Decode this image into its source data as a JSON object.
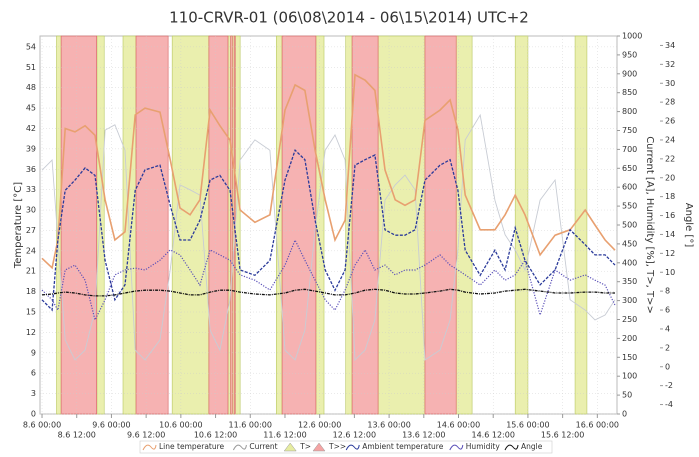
{
  "chart_data": {
    "type": "line",
    "title": "110-CRVR-01 (06\\08\\2014 - 06\\15\\2014) UTC+2",
    "ylabel": "Temperature [°C]",
    "y2label": "Current [A], Humidity [%], T>, T>>",
    "y3label": "Angle [°]",
    "grid": true,
    "legend": "bottom",
    "xlim": [
      -0.7,
      198.8
    ],
    "xticks": [
      {
        "value": 0,
        "label": "8.6 00:00"
      },
      {
        "value": 12,
        "label": "8.6 12:00"
      },
      {
        "value": 24,
        "label": "9.6 00:00"
      },
      {
        "value": 36,
        "label": "9.6 12:00"
      },
      {
        "value": 48,
        "label": "10.6 00:00"
      },
      {
        "value": 60,
        "label": "10.6 12:00"
      },
      {
        "value": 72,
        "label": "11.6 00:00"
      },
      {
        "value": 84,
        "label": "11.6 12:00"
      },
      {
        "value": 96,
        "label": "12.6 00:00"
      },
      {
        "value": 108,
        "label": "12.6 12:00"
      },
      {
        "value": 120,
        "label": "13.6 00:00"
      },
      {
        "value": 132,
        "label": "13.6 12:00"
      },
      {
        "value": 144,
        "label": "14.6 00:00"
      },
      {
        "value": 156,
        "label": "14.6 12:00"
      },
      {
        "value": 168,
        "label": "15.6 00:00"
      },
      {
        "value": 180,
        "label": "15.6 12:00"
      },
      {
        "value": 192,
        "label": "16.6 00:00"
      }
    ],
    "ylim": [
      0,
      55.6
    ],
    "yticks": [
      0,
      3,
      6,
      9,
      12,
      15,
      18,
      21,
      24,
      27,
      30,
      33,
      36,
      39,
      42,
      45,
      48,
      51,
      54
    ],
    "y2lim": [
      0,
      1000
    ],
    "y2ticks": [
      0,
      50,
      100,
      150,
      200,
      250,
      300,
      350,
      400,
      450,
      500,
      550,
      600,
      650,
      700,
      750,
      800,
      850,
      900,
      950,
      1000
    ],
    "y3lim": [
      -5,
      35
    ],
    "y3ticks": [
      -4,
      -2,
      0,
      2,
      4,
      6,
      8,
      10,
      12,
      14,
      16,
      18,
      20,
      22,
      24,
      26,
      28,
      30,
      32,
      34
    ],
    "x": [
      0,
      3.5,
      5.5,
      8,
      11.4,
      14.9,
      18.3,
      21.8,
      25.2,
      28.7,
      32.2,
      35.6,
      40.8,
      44.3,
      47.7,
      51.2,
      54.6,
      58.1,
      61.5,
      65,
      68.5,
      73.6,
      78.8,
      84,
      87.5,
      90.9,
      94.4,
      97.9,
      101.3,
      104.8,
      108.2,
      111.7,
      115.1,
      118.6,
      122.1,
      125.5,
      129,
      132.4,
      137.6,
      141.1,
      143.8,
      146.3,
      151.5,
      156.6,
      160.1,
      163.6,
      167,
      172.2,
      177.4,
      182.6,
      187.8,
      191.2,
      194.7,
      198.1
    ],
    "series": [
      {
        "name": "Line temperature",
        "color": "#e8a070",
        "axis": "y",
        "values": [
          22.9,
          21.5,
          25.6,
          42,
          41.5,
          42.4,
          41,
          31.5,
          25.6,
          26.8,
          44,
          45,
          44.4,
          37.4,
          30.3,
          29.3,
          31.5,
          44.7,
          42.4,
          40.3,
          30,
          28.2,
          29.3,
          44.7,
          48.4,
          47.6,
          38.8,
          31.5,
          25.6,
          28.5,
          49.9,
          49.1,
          47.6,
          35.9,
          31.5,
          30.7,
          31.5,
          43.2,
          44.7,
          46.2,
          41.8,
          32.2,
          27.1,
          27.1,
          29.3,
          32.2,
          29.3,
          23.4,
          26.3,
          27.1,
          30,
          27.8,
          25.6,
          24.1
        ]
      },
      {
        "name": "Current",
        "color": "#c8ccd4",
        "axis": "y2",
        "values": [
          645,
          672,
          460,
          196,
          143,
          169,
          275,
          751,
          765,
          698,
          169,
          143,
          196,
          381,
          606,
          593,
          579,
          222,
          169,
          302,
          672,
          725,
          698,
          169,
          143,
          222,
          487,
          698,
          738,
          672,
          143,
          169,
          249,
          566,
          606,
          632,
          593,
          143,
          169,
          249,
          434,
          725,
          791,
          566,
          474,
          434,
          381,
          566,
          619,
          302,
          275,
          249,
          262,
          302
        ]
      },
      {
        "name": "T>",
        "color": "#e6eca0",
        "axis": "y2",
        "level": 1000,
        "intervals": [
          [
            5,
            6.6
          ],
          [
            19,
            21.5
          ],
          [
            28,
            32.5
          ],
          [
            45,
            57.7
          ],
          [
            64.3,
            68.5
          ],
          [
            81,
            83
          ],
          [
            94.7,
            97.5
          ],
          [
            105,
            107.2
          ],
          [
            116.2,
            132.4
          ],
          [
            143.2,
            148.7
          ],
          [
            163.6,
            168
          ],
          [
            184.3,
            188.4
          ]
        ]
      },
      {
        "name": "T>>",
        "color": "#f4a4a4",
        "axis": "y2",
        "level": 1000,
        "intervals": [
          [
            6.6,
            18.9
          ],
          [
            32.5,
            43.6
          ],
          [
            57.7,
            64.3
          ],
          [
            65.2,
            65.8
          ],
          [
            66.4,
            66.8
          ],
          [
            83,
            94.7
          ],
          [
            107.2,
            116.2
          ],
          [
            132.4,
            143.2
          ]
        ]
      },
      {
        "name": "Ambient temperature",
        "color": "#2a3a9a",
        "axis": "y",
        "values": [
          16.8,
          15.3,
          25.6,
          32.9,
          34.4,
          36.2,
          35.1,
          22.6,
          16.8,
          19,
          32.9,
          35.9,
          36.6,
          30.7,
          25.6,
          25.6,
          28.5,
          34.4,
          35.1,
          32.9,
          21.2,
          20.4,
          22.6,
          34.4,
          38.8,
          37.4,
          28.5,
          21.2,
          18.2,
          21.2,
          36.6,
          37.4,
          38.1,
          27.1,
          26.3,
          26.3,
          27.1,
          34.4,
          36.6,
          37.4,
          32.9,
          24.1,
          20.4,
          24.1,
          21.2,
          27.4,
          22.6,
          19,
          21.2,
          27.1,
          24.9,
          23.4,
          23.4,
          21.9
        ]
      },
      {
        "name": "Humidity",
        "color": "#5a50b8",
        "axis": "y2",
        "values": [
          328,
          302,
          275,
          381,
          394,
          354,
          249,
          302,
          368,
          381,
          386,
          381,
          407,
          434,
          421,
          381,
          341,
          434,
          421,
          407,
          368,
          354,
          328,
          394,
          460,
          407,
          354,
          302,
          275,
          328,
          394,
          434,
          381,
          394,
          368,
          381,
          381,
          394,
          421,
          394,
          381,
          368,
          341,
          381,
          354,
          368,
          407,
          262,
          381,
          354,
          368,
          354,
          341,
          288
        ]
      },
      {
        "name": "Angle",
        "color": "#111111",
        "axis": "y3",
        "values": [
          7.6,
          7.7,
          7.8,
          7.9,
          7.8,
          7.6,
          7.5,
          7.5,
          7.6,
          7.8,
          8,
          8.1,
          8.1,
          8,
          7.8,
          7.6,
          7.6,
          7.9,
          8.1,
          8.1,
          7.9,
          7.7,
          7.6,
          7.8,
          8.1,
          8.2,
          8,
          7.8,
          7.6,
          7.6,
          7.8,
          8.1,
          8.2,
          8.1,
          7.8,
          7.7,
          7.7,
          7.8,
          8,
          8.2,
          8.1,
          7.9,
          7.7,
          7.8,
          8,
          8.1,
          8.2,
          8,
          7.8,
          7.8,
          7.9,
          7.9,
          7.8,
          7.8
        ]
      }
    ]
  }
}
